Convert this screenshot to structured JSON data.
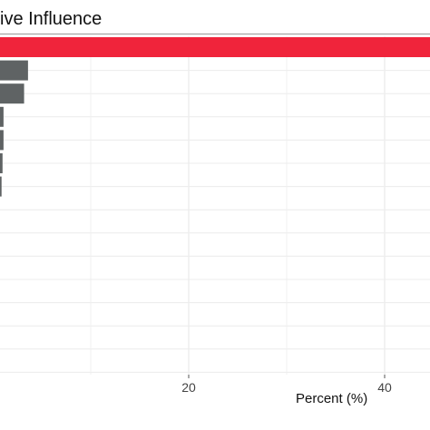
{
  "chart_data": {
    "type": "bar",
    "orientation": "horizontal",
    "title": "ive Influence",
    "xlabel": "Percent (%)",
    "ylabel": "",
    "x_ticks": [
      20,
      40
    ],
    "grid": true,
    "highlight_color": "#f0243b",
    "bar_color": "#5f6364",
    "series": [
      {
        "values": [
          62.0,
          3.6,
          3.2,
          1.1,
          1.1,
          1.0,
          0.9,
          0.5,
          0.3,
          0.2,
          0.2,
          0.0,
          0.0,
          0.0,
          0.0
        ]
      }
    ]
  }
}
